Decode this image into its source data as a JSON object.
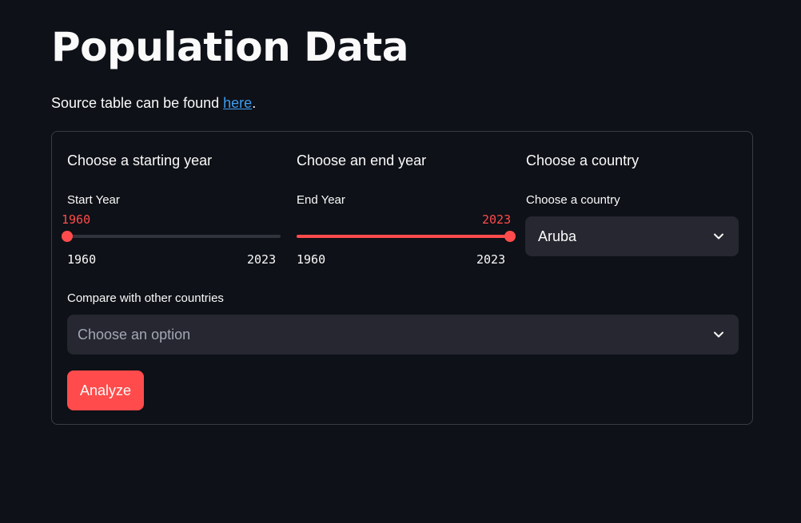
{
  "page": {
    "title": "Population Data",
    "source_prefix": "Source table can be found ",
    "source_link": "here",
    "source_suffix": "."
  },
  "form": {
    "start_col": {
      "heading": "Choose a starting year",
      "label": "Start Year",
      "value": "1960",
      "min": "1960",
      "max": "2023"
    },
    "end_col": {
      "heading": "Choose an end year",
      "label": "End Year",
      "value": "2023",
      "min": "1960",
      "max": "2023"
    },
    "country_col": {
      "heading": "Choose a country",
      "label": "Choose a country",
      "selected": "Aruba"
    },
    "compare": {
      "label": "Compare with other countries",
      "placeholder": "Choose an option"
    },
    "submit_label": "Analyze"
  },
  "colors": {
    "background": "#0e1117",
    "accent": "#ff4b4b",
    "link": "#3d9df3",
    "input_bg": "#262730",
    "card_border": "#3a3d45"
  },
  "icons": {
    "dropdown": "chevron-down-icon"
  }
}
